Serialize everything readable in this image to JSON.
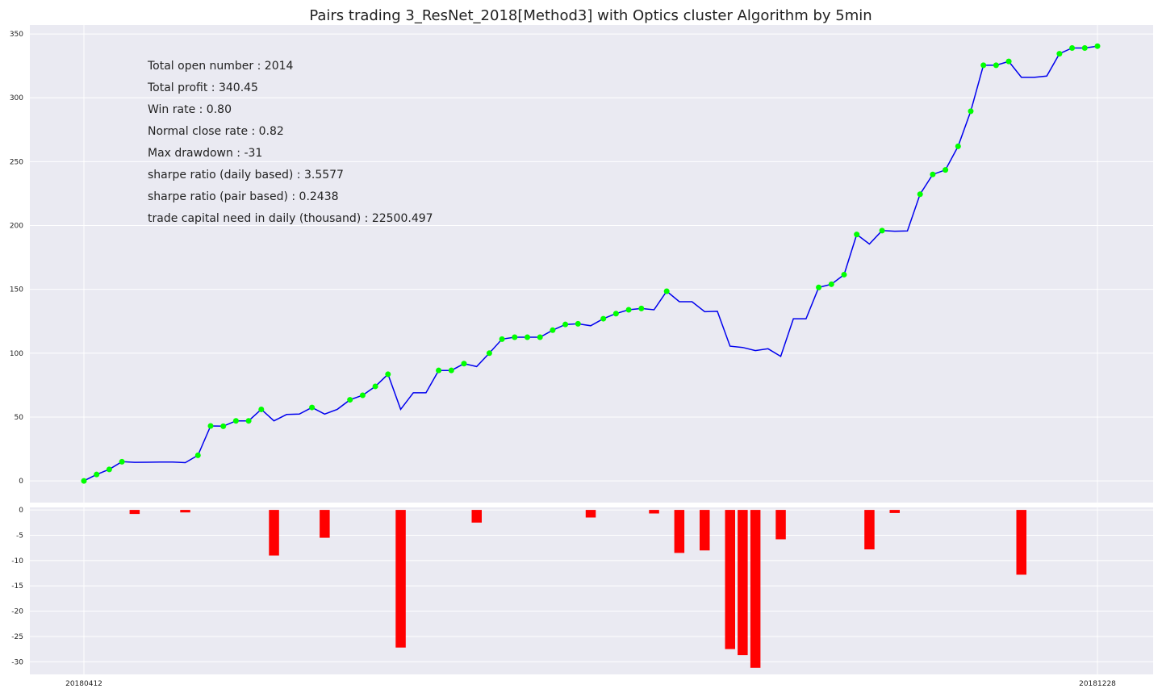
{
  "chart_data": [
    {
      "type": "line",
      "title": "Pairs trading 3_ResNet_2018[Method3] with Optics cluster Algorithm by 5min",
      "ylim": [
        -17,
        357
      ],
      "yticks": [
        0,
        50,
        100,
        150,
        200,
        250,
        300,
        350
      ],
      "x_first_label": "20180412",
      "x_last_label": "20181228",
      "grid": true,
      "line_color": "#0000ee",
      "marker_color": "#00ff00",
      "stats": [
        "Total open number : 2014",
        "Total profit : 340.45",
        "Win rate : 0.80",
        "Normal close rate : 0.82",
        "Max drawdown : -31",
        "sharpe ratio (daily based) : 3.5577",
        "sharpe ratio (pair based) : 0.2438",
        "trade capital need in daily (thousand) : 22500.497"
      ],
      "values": [
        0,
        5,
        9,
        15,
        14.5,
        14.6,
        14.7,
        14.8,
        14.3,
        20,
        43,
        42.8,
        47,
        47,
        56,
        47,
        52,
        52.3,
        57.5,
        52.3,
        56,
        63.5,
        67,
        74,
        83.5,
        56,
        69,
        69,
        86.5,
        86.5,
        91.8,
        89.5,
        100,
        111,
        112.5,
        112.5,
        112.5,
        118,
        122.5,
        123,
        121.5,
        127,
        131,
        134,
        135,
        134,
        148.5,
        140.3,
        140.3,
        132.5,
        132.8,
        105.5,
        104.5,
        102,
        103.5,
        97.5,
        127,
        127,
        151.5,
        154,
        161.5,
        193,
        185.5,
        196,
        195.5,
        195.7,
        224.5,
        240,
        243.5,
        262,
        289.5,
        325.5,
        325.5,
        328.5,
        316,
        316,
        317,
        334.5,
        339,
        339,
        340.45
      ],
      "markers": [
        0,
        1,
        2,
        3,
        9,
        10,
        11,
        12,
        13,
        14,
        18,
        21,
        22,
        23,
        24,
        28,
        29,
        30,
        32,
        33,
        34,
        35,
        36,
        37,
        38,
        39,
        41,
        42,
        43,
        44,
        46,
        58,
        59,
        60,
        61,
        63,
        66,
        67,
        68,
        69,
        70,
        71,
        72,
        73,
        77,
        78,
        79,
        80
      ]
    },
    {
      "type": "bar",
      "ylim": [
        -32.5,
        0.5
      ],
      "yticks": [
        0,
        -5,
        -10,
        -15,
        -20,
        -25,
        -30
      ],
      "bar_color": "#ff0000",
      "x_first_label": "20180412",
      "x_last_label": "20181228",
      "bars": [
        {
          "x": 4,
          "value": -0.8
        },
        {
          "x": 8,
          "value": -0.5
        },
        {
          "x": 15,
          "value": -9
        },
        {
          "x": 19,
          "value": -5.5
        },
        {
          "x": 25,
          "value": -27.2
        },
        {
          "x": 31,
          "value": -2.5
        },
        {
          "x": 40,
          "value": -1.5
        },
        {
          "x": 45,
          "value": -0.7
        },
        {
          "x": 47,
          "value": -8.5
        },
        {
          "x": 49,
          "value": -8
        },
        {
          "x": 51,
          "value": -27.5
        },
        {
          "x": 52,
          "value": -28.7
        },
        {
          "x": 53,
          "value": -31.2
        },
        {
          "x": 55,
          "value": -5.8
        },
        {
          "x": 62,
          "value": -7.8
        },
        {
          "x": 64,
          "value": -0.6
        },
        {
          "x": 74,
          "value": -12.8
        }
      ]
    }
  ]
}
